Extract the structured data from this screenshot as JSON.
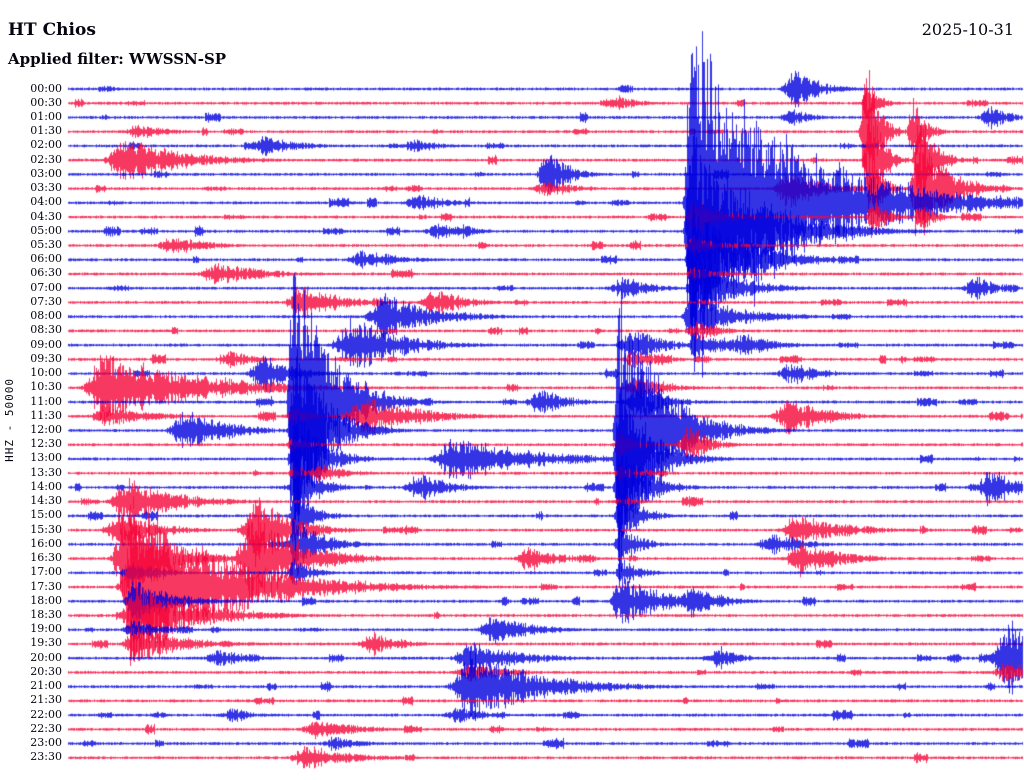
{
  "header": {
    "station": "HT Chios",
    "date": "2025-10-31",
    "filter": "Applied filter: WWSSN-SP"
  },
  "axis": {
    "ylabel": "HHZ - 50000"
  },
  "colors": {
    "trace_blue": "#0000dd",
    "trace_red": "#f5063a",
    "text": "#050510",
    "background": "#ffffff"
  },
  "chart_data": {
    "type": "seismogram-helicorder",
    "title": "HT Chios",
    "station": "HT Chios",
    "channel": "HHZ",
    "scale_label": "HHZ - 50000",
    "date": "2025-10-31",
    "filter": "WWSSN-SP",
    "minutes_per_row": 30,
    "rows": 48,
    "row_color_pattern": [
      "blue",
      "red"
    ],
    "noise_amp": 1.1,
    "row_labels": [
      "00:00",
      "00:30",
      "01:00",
      "01:30",
      "02:00",
      "02:30",
      "03:00",
      "03:30",
      "04:00",
      "04:30",
      "05:00",
      "05:30",
      "06:00",
      "06:30",
      "07:00",
      "07:30",
      "08:00",
      "08:30",
      "09:00",
      "09:30",
      "10:00",
      "10:30",
      "11:00",
      "11:30",
      "12:00",
      "12:30",
      "13:00",
      "13:30",
      "14:00",
      "14:30",
      "15:00",
      "15:30",
      "16:00",
      "16:30",
      "17:00",
      "17:30",
      "18:00",
      "18:30",
      "19:00",
      "19:30",
      "20:00",
      "20:30",
      "21:00",
      "21:30",
      "22:00",
      "22:30",
      "23:00",
      "23:30"
    ],
    "events": [
      {
        "row": 8,
        "x": 0.652,
        "amp": 200,
        "attack": 0.003,
        "decay": 0.1
      },
      {
        "row": 10,
        "x": 0.652,
        "amp": 120,
        "attack": 0.003,
        "decay": 0.06
      },
      {
        "row": 12,
        "x": 0.654,
        "amp": 70,
        "attack": 0.003,
        "decay": 0.05
      },
      {
        "row": 14,
        "x": 0.654,
        "amp": 42,
        "attack": 0.003,
        "decay": 0.04
      },
      {
        "row": 16,
        "x": 0.652,
        "amp": 26,
        "attack": 0.004,
        "decay": 0.05
      },
      {
        "row": 18,
        "x": 0.656,
        "amp": 14,
        "attack": 0.004,
        "decay": 0.05
      },
      {
        "row": 9,
        "x": 0.655,
        "amp": 22,
        "attack": 0.004,
        "decay": 0.03
      },
      {
        "row": 11,
        "x": 0.655,
        "amp": 12,
        "attack": 0.004,
        "decay": 0.03
      },
      {
        "row": 13,
        "x": 0.655,
        "amp": 8,
        "attack": 0.004,
        "decay": 0.03
      },
      {
        "row": 1,
        "x": 0.838,
        "amp": 26,
        "attack": 0.003,
        "decay": 0.012
      },
      {
        "row": 3,
        "x": 0.836,
        "amp": 95,
        "attack": 0.003,
        "decay": 0.012
      },
      {
        "row": 3,
        "x": 0.885,
        "amp": 40,
        "attack": 0.003,
        "decay": 0.012
      },
      {
        "row": 5,
        "x": 0.84,
        "amp": 80,
        "attack": 0.003,
        "decay": 0.012
      },
      {
        "row": 5,
        "x": 0.892,
        "amp": 60,
        "attack": 0.003,
        "decay": 0.015
      },
      {
        "row": 7,
        "x": 0.842,
        "amp": 42,
        "attack": 0.003,
        "decay": 0.012
      },
      {
        "row": 7,
        "x": 0.89,
        "amp": 62,
        "attack": 0.004,
        "decay": 0.03
      },
      {
        "row": 9,
        "x": 0.842,
        "amp": 26,
        "attack": 0.003,
        "decay": 0.015
      },
      {
        "row": 9,
        "x": 0.893,
        "amp": 18,
        "attack": 0.003,
        "decay": 0.015
      },
      {
        "row": 0,
        "x": 0.763,
        "amp": 22,
        "attack": 0.008,
        "decay": 0.025
      },
      {
        "row": 2,
        "x": 0.76,
        "amp": 10,
        "attack": 0.008,
        "decay": 0.02
      },
      {
        "row": 2,
        "x": 0.968,
        "amp": 13,
        "attack": 0.008,
        "decay": 0.02
      },
      {
        "row": 5,
        "x": 0.055,
        "amp": 28,
        "attack": 0.008,
        "decay": 0.06
      },
      {
        "row": 4,
        "x": 0.207,
        "amp": 12,
        "attack": 0.01,
        "decay": 0.035
      },
      {
        "row": 4,
        "x": 0.365,
        "amp": 7,
        "attack": 0.01,
        "decay": 0.03
      },
      {
        "row": 6,
        "x": 0.502,
        "amp": 32,
        "attack": 0.005,
        "decay": 0.02
      },
      {
        "row": 7,
        "x": 0.502,
        "amp": 10,
        "attack": 0.008,
        "decay": 0.03
      },
      {
        "row": 7,
        "x": 0.757,
        "amp": 22,
        "attack": 0.01,
        "decay": 0.035
      },
      {
        "row": 8,
        "x": 0.368,
        "amp": 10,
        "attack": 0.01,
        "decay": 0.03
      },
      {
        "row": 1,
        "x": 0.578,
        "amp": 9,
        "attack": 0.008,
        "decay": 0.02
      },
      {
        "row": 3,
        "x": 0.073,
        "amp": 9,
        "attack": 0.008,
        "decay": 0.03
      },
      {
        "row": 13,
        "x": 0.155,
        "amp": 13,
        "attack": 0.01,
        "decay": 0.05
      },
      {
        "row": 12,
        "x": 0.31,
        "amp": 11,
        "attack": 0.01,
        "decay": 0.04
      },
      {
        "row": 11,
        "x": 0.11,
        "amp": 10,
        "attack": 0.01,
        "decay": 0.04
      },
      {
        "row": 10,
        "x": 0.39,
        "amp": 9,
        "attack": 0.01,
        "decay": 0.02
      },
      {
        "row": 10,
        "x": 0.415,
        "amp": 8,
        "attack": 0.01,
        "decay": 0.02
      },
      {
        "row": 14,
        "x": 0.584,
        "amp": 12,
        "attack": 0.01,
        "decay": 0.03
      },
      {
        "row": 14,
        "x": 0.953,
        "amp": 14,
        "attack": 0.008,
        "decay": 0.02
      },
      {
        "row": 15,
        "x": 0.243,
        "amp": 20,
        "attack": 0.008,
        "decay": 0.04
      },
      {
        "row": 15,
        "x": 0.387,
        "amp": 16,
        "attack": 0.01,
        "decay": 0.03
      },
      {
        "row": 16,
        "x": 0.332,
        "amp": 26,
        "attack": 0.01,
        "decay": 0.05
      },
      {
        "row": 18,
        "x": 0.3,
        "amp": 30,
        "attack": 0.012,
        "decay": 0.05
      },
      {
        "row": 18,
        "x": 0.595,
        "amp": 18,
        "attack": 0.01,
        "decay": 0.03
      },
      {
        "row": 18,
        "x": 0.71,
        "amp": 14,
        "attack": 0.01,
        "decay": 0.03
      },
      {
        "row": 19,
        "x": 0.17,
        "amp": 9,
        "attack": 0.01,
        "decay": 0.03
      },
      {
        "row": 19,
        "x": 0.595,
        "amp": 10,
        "attack": 0.01,
        "decay": 0.03
      },
      {
        "row": 17,
        "x": 0.66,
        "amp": 10,
        "attack": 0.008,
        "decay": 0.03
      },
      {
        "row": 20,
        "x": 0.207,
        "amp": 22,
        "attack": 0.01,
        "decay": 0.03
      },
      {
        "row": 20,
        "x": 0.76,
        "amp": 12,
        "attack": 0.01,
        "decay": 0.03
      },
      {
        "row": 21,
        "x": 0.038,
        "amp": 42,
        "attack": 0.01,
        "decay": 0.09
      },
      {
        "row": 21,
        "x": 0.6,
        "amp": 14,
        "attack": 0.01,
        "decay": 0.03
      },
      {
        "row": 23,
        "x": 0.04,
        "amp": 12,
        "attack": 0.01,
        "decay": 0.05
      },
      {
        "row": 22,
        "x": 0.235,
        "amp": 185,
        "attack": 0.0025,
        "decay": 0.035
      },
      {
        "row": 24,
        "x": 0.236,
        "amp": 115,
        "attack": 0.0025,
        "decay": 0.03
      },
      {
        "row": 26,
        "x": 0.236,
        "amp": 70,
        "attack": 0.0025,
        "decay": 0.025
      },
      {
        "row": 28,
        "x": 0.237,
        "amp": 45,
        "attack": 0.0025,
        "decay": 0.02
      },
      {
        "row": 30,
        "x": 0.237,
        "amp": 30,
        "attack": 0.0025,
        "decay": 0.02
      },
      {
        "row": 32,
        "x": 0.236,
        "amp": 30,
        "attack": 0.003,
        "decay": 0.03
      },
      {
        "row": 34,
        "x": 0.236,
        "amp": 16,
        "attack": 0.003,
        "decay": 0.02
      },
      {
        "row": 23,
        "x": 0.236,
        "amp": 13,
        "attack": 0.004,
        "decay": 0.02
      },
      {
        "row": 25,
        "x": 0.236,
        "amp": 10,
        "attack": 0.004,
        "decay": 0.02
      },
      {
        "row": 27,
        "x": 0.237,
        "amp": 8,
        "attack": 0.004,
        "decay": 0.02
      },
      {
        "row": 22,
        "x": 0.497,
        "amp": 14,
        "attack": 0.01,
        "decay": 0.03
      },
      {
        "row": 22,
        "x": 0.6,
        "amp": 20,
        "attack": 0.01,
        "decay": 0.03
      },
      {
        "row": 23,
        "x": 0.315,
        "amp": 20,
        "attack": 0.015,
        "decay": 0.06
      },
      {
        "row": 23,
        "x": 0.757,
        "amp": 20,
        "attack": 0.01,
        "decay": 0.04
      },
      {
        "row": 24,
        "x": 0.578,
        "amp": 165,
        "attack": 0.003,
        "decay": 0.04
      },
      {
        "row": 26,
        "x": 0.578,
        "amp": 92,
        "attack": 0.003,
        "decay": 0.03
      },
      {
        "row": 28,
        "x": 0.578,
        "amp": 55,
        "attack": 0.003,
        "decay": 0.025
      },
      {
        "row": 30,
        "x": 0.578,
        "amp": 35,
        "attack": 0.003,
        "decay": 0.02
      },
      {
        "row": 32,
        "x": 0.578,
        "amp": 24,
        "attack": 0.003,
        "decay": 0.02
      },
      {
        "row": 34,
        "x": 0.579,
        "amp": 16,
        "attack": 0.003,
        "decay": 0.02
      },
      {
        "row": 36,
        "x": 0.578,
        "amp": 26,
        "attack": 0.005,
        "decay": 0.05
      },
      {
        "row": 25,
        "x": 0.578,
        "amp": 14,
        "attack": 0.004,
        "decay": 0.02
      },
      {
        "row": 27,
        "x": 0.579,
        "amp": 10,
        "attack": 0.004,
        "decay": 0.02
      },
      {
        "row": 29,
        "x": 0.578,
        "amp": 8,
        "attack": 0.004,
        "decay": 0.02
      },
      {
        "row": 24,
        "x": 0.125,
        "amp": 26,
        "attack": 0.01,
        "decay": 0.04
      },
      {
        "row": 25,
        "x": 0.652,
        "amp": 22,
        "attack": 0.008,
        "decay": 0.02
      },
      {
        "row": 26,
        "x": 0.405,
        "amp": 24,
        "attack": 0.012,
        "decay": 0.08
      },
      {
        "row": 27,
        "x": 0.265,
        "amp": 10,
        "attack": 0.01,
        "decay": 0.03
      },
      {
        "row": 28,
        "x": 0.37,
        "amp": 16,
        "attack": 0.01,
        "decay": 0.03
      },
      {
        "row": 28,
        "x": 0.968,
        "amp": 22,
        "attack": 0.008,
        "decay": 0.03
      },
      {
        "row": 29,
        "x": 0.062,
        "amp": 26,
        "attack": 0.01,
        "decay": 0.05
      },
      {
        "row": 31,
        "x": 0.055,
        "amp": 20,
        "attack": 0.01,
        "decay": 0.04
      },
      {
        "row": 31,
        "x": 0.2,
        "amp": 40,
        "attack": 0.01,
        "decay": 0.035
      },
      {
        "row": 31,
        "x": 0.765,
        "amp": 18,
        "attack": 0.01,
        "decay": 0.05
      },
      {
        "row": 32,
        "x": 0.74,
        "amp": 14,
        "attack": 0.01,
        "decay": 0.03
      },
      {
        "row": 33,
        "x": 0.062,
        "amp": 55,
        "attack": 0.008,
        "decay": 0.04
      },
      {
        "row": 33,
        "x": 0.195,
        "amp": 55,
        "attack": 0.01,
        "decay": 0.045
      },
      {
        "row": 33,
        "x": 0.485,
        "amp": 14,
        "attack": 0.01,
        "decay": 0.03
      },
      {
        "row": 33,
        "x": 0.77,
        "amp": 20,
        "attack": 0.01,
        "decay": 0.04
      },
      {
        "row": 35,
        "x": 0.068,
        "amp": 95,
        "attack": 0.006,
        "decay": 0.09
      },
      {
        "row": 37,
        "x": 0.068,
        "amp": 40,
        "attack": 0.006,
        "decay": 0.06
      },
      {
        "row": 39,
        "x": 0.068,
        "amp": 22,
        "attack": 0.006,
        "decay": 0.05
      },
      {
        "row": 34,
        "x": 0.068,
        "amp": 14,
        "attack": 0.006,
        "decay": 0.03
      },
      {
        "row": 36,
        "x": 0.068,
        "amp": 24,
        "attack": 0.005,
        "decay": 0.04
      },
      {
        "row": 38,
        "x": 0.068,
        "amp": 12,
        "attack": 0.006,
        "decay": 0.03
      },
      {
        "row": 36,
        "x": 0.655,
        "amp": 18,
        "attack": 0.01,
        "decay": 0.03
      },
      {
        "row": 38,
        "x": 0.447,
        "amp": 16,
        "attack": 0.01,
        "decay": 0.04
      },
      {
        "row": 39,
        "x": 0.322,
        "amp": 12,
        "attack": 0.01,
        "decay": 0.03
      },
      {
        "row": 40,
        "x": 0.988,
        "amp": 46,
        "attack": 0.01,
        "decay": 0.04
      },
      {
        "row": 41,
        "x": 0.988,
        "amp": 14,
        "attack": 0.01,
        "decay": 0.03
      },
      {
        "row": 40,
        "x": 0.425,
        "amp": 18,
        "attack": 0.012,
        "decay": 0.05
      },
      {
        "row": 42,
        "x": 0.425,
        "amp": 38,
        "attack": 0.012,
        "decay": 0.07
      },
      {
        "row": 41,
        "x": 0.425,
        "amp": 10,
        "attack": 0.012,
        "decay": 0.04
      },
      {
        "row": 40,
        "x": 0.685,
        "amp": 12,
        "attack": 0.01,
        "decay": 0.02
      },
      {
        "row": 40,
        "x": 0.16,
        "amp": 10,
        "attack": 0.01,
        "decay": 0.03
      },
      {
        "row": 44,
        "x": 0.41,
        "amp": 9,
        "attack": 0.01,
        "decay": 0.03
      },
      {
        "row": 44,
        "x": 0.175,
        "amp": 8,
        "attack": 0.01,
        "decay": 0.02
      },
      {
        "row": 45,
        "x": 0.262,
        "amp": 12,
        "attack": 0.01,
        "decay": 0.04
      },
      {
        "row": 46,
        "x": 0.28,
        "amp": 8,
        "attack": 0.01,
        "decay": 0.03
      },
      {
        "row": 47,
        "x": 0.25,
        "amp": 13,
        "attack": 0.01,
        "decay": 0.05
      }
    ]
  }
}
